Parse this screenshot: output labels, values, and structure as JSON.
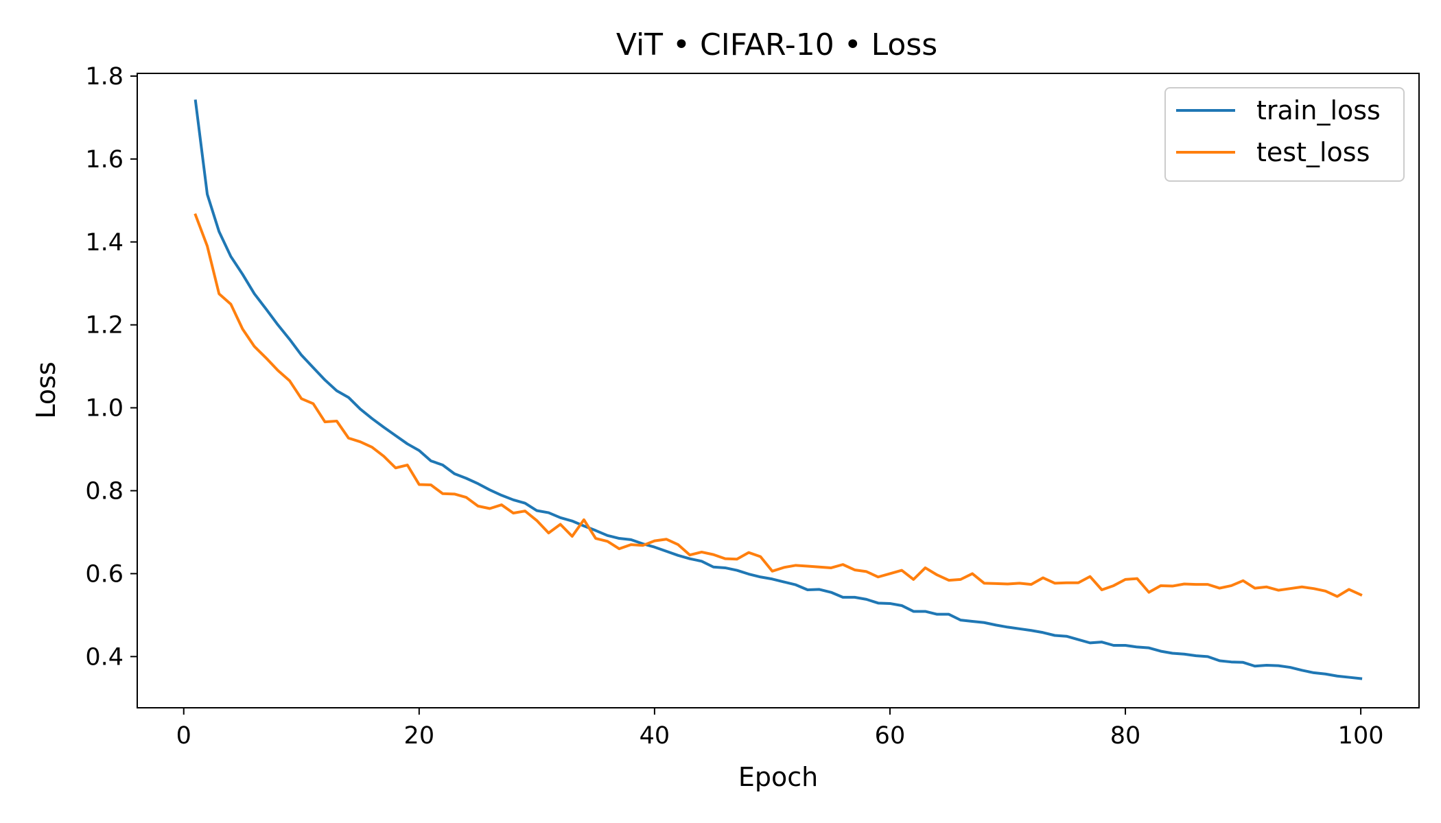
{
  "chart_data": {
    "type": "line",
    "title": "ViT • CIFAR-10 • Loss",
    "xlabel": "Epoch",
    "ylabel": "Loss",
    "xlim": [
      -3.95,
      104.95
    ],
    "ylim": [
      0.2765,
      1.8065
    ],
    "xticks": [
      0,
      20,
      40,
      60,
      80,
      100
    ],
    "yticks": [
      0.4,
      0.6,
      0.8,
      1.0,
      1.2,
      1.4,
      1.6,
      1.8
    ],
    "ytick_labels": [
      "0.4",
      "0.6",
      "0.8",
      "1.0",
      "1.2",
      "1.4",
      "1.6",
      "1.8"
    ],
    "xtick_labels": [
      "0",
      "20",
      "40",
      "60",
      "80",
      "100"
    ],
    "grid": false,
    "legend_position": "top-right",
    "series": [
      {
        "name": "train_loss",
        "color": "#1f77b4",
        "x": [
          1,
          2,
          3,
          4,
          5,
          6,
          7,
          8,
          9,
          10,
          11,
          12,
          13,
          14,
          15,
          16,
          17,
          18,
          19,
          20,
          21,
          22,
          23,
          24,
          25,
          26,
          27,
          28,
          29,
          30,
          31,
          32,
          33,
          34,
          35,
          36,
          37,
          38,
          39,
          40,
          41,
          42,
          43,
          44,
          45,
          46,
          47,
          48,
          49,
          50,
          51,
          52,
          53,
          54,
          55,
          56,
          57,
          58,
          59,
          60,
          61,
          62,
          63,
          64,
          65,
          66,
          67,
          68,
          69,
          70,
          71,
          72,
          73,
          74,
          75,
          76,
          77,
          78,
          79,
          80,
          81,
          82,
          83,
          84,
          85,
          86,
          87,
          88,
          89,
          90,
          91,
          92,
          93,
          94,
          95,
          96,
          97,
          98,
          99,
          100
        ],
        "values": [
          1.74,
          1.515,
          1.425,
          1.365,
          1.322,
          1.275,
          1.238,
          1.2,
          1.165,
          1.127,
          1.097,
          1.067,
          1.041,
          1.025,
          0.997,
          0.974,
          0.953,
          0.933,
          0.913,
          0.897,
          0.872,
          0.862,
          0.841,
          0.83,
          0.817,
          0.802,
          0.789,
          0.778,
          0.77,
          0.752,
          0.747,
          0.735,
          0.727,
          0.715,
          0.704,
          0.692,
          0.685,
          0.682,
          0.672,
          0.664,
          0.654,
          0.644,
          0.636,
          0.63,
          0.616,
          0.614,
          0.608,
          0.599,
          0.592,
          0.587,
          0.58,
          0.573,
          0.561,
          0.562,
          0.555,
          0.543,
          0.543,
          0.538,
          0.529,
          0.528,
          0.523,
          0.509,
          0.509,
          0.502,
          0.502,
          0.488,
          0.485,
          0.482,
          0.476,
          0.471,
          0.467,
          0.463,
          0.458,
          0.451,
          0.449,
          0.441,
          0.433,
          0.435,
          0.427,
          0.427,
          0.423,
          0.421,
          0.413,
          0.408,
          0.406,
          0.402,
          0.4,
          0.39,
          0.387,
          0.386,
          0.377,
          0.379,
          0.378,
          0.374,
          0.367,
          0.361,
          0.358,
          0.353,
          0.35,
          0.347
        ]
      },
      {
        "name": "test_loss",
        "color": "#ff7f0e",
        "x": [
          1,
          2,
          3,
          4,
          5,
          6,
          7,
          8,
          9,
          10,
          11,
          12,
          13,
          14,
          15,
          16,
          17,
          18,
          19,
          20,
          21,
          22,
          23,
          24,
          25,
          26,
          27,
          28,
          29,
          30,
          31,
          32,
          33,
          34,
          35,
          36,
          37,
          38,
          39,
          40,
          41,
          42,
          43,
          44,
          45,
          46,
          47,
          48,
          49,
          50,
          51,
          52,
          53,
          54,
          55,
          56,
          57,
          58,
          59,
          60,
          61,
          62,
          63,
          64,
          65,
          66,
          67,
          68,
          69,
          70,
          71,
          72,
          73,
          74,
          75,
          76,
          77,
          78,
          79,
          80,
          81,
          82,
          83,
          84,
          85,
          86,
          87,
          88,
          89,
          90,
          91,
          92,
          93,
          94,
          95,
          96,
          97,
          98,
          99,
          100
        ],
        "values": [
          1.465,
          1.39,
          1.275,
          1.25,
          1.19,
          1.148,
          1.12,
          1.09,
          1.065,
          1.022,
          1.01,
          0.966,
          0.968,
          0.927,
          0.918,
          0.905,
          0.883,
          0.855,
          0.862,
          0.815,
          0.814,
          0.793,
          0.792,
          0.784,
          0.763,
          0.757,
          0.766,
          0.746,
          0.751,
          0.728,
          0.698,
          0.719,
          0.69,
          0.73,
          0.685,
          0.678,
          0.66,
          0.67,
          0.668,
          0.679,
          0.683,
          0.67,
          0.645,
          0.652,
          0.646,
          0.636,
          0.635,
          0.651,
          0.641,
          0.606,
          0.615,
          0.62,
          0.618,
          0.616,
          0.614,
          0.622,
          0.609,
          0.605,
          0.592,
          0.6,
          0.608,
          0.586,
          0.614,
          0.597,
          0.584,
          0.586,
          0.6,
          0.577,
          0.576,
          0.575,
          0.577,
          0.574,
          0.59,
          0.577,
          0.578,
          0.578,
          0.593,
          0.561,
          0.571,
          0.586,
          0.588,
          0.555,
          0.571,
          0.57,
          0.575,
          0.574,
          0.574,
          0.565,
          0.571,
          0.583,
          0.565,
          0.568,
          0.56,
          0.564,
          0.568,
          0.564,
          0.558,
          0.545,
          0.562,
          0.549
        ]
      }
    ]
  }
}
